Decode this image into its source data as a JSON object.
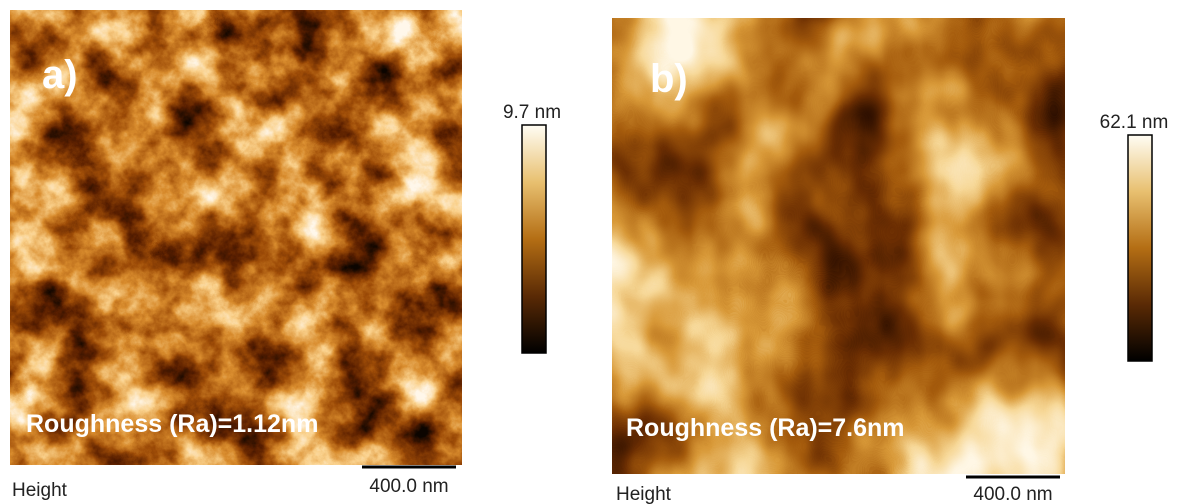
{
  "panels": [
    {
      "label": "a)",
      "colorbar_max": "9.7 nm",
      "roughness": "Roughness (Ra)=1.12nm",
      "channel": "Height",
      "scale_bar": "400.0 nm"
    },
    {
      "label": "b)",
      "colorbar_max": "62.1 nm",
      "roughness": "Roughness (Ra)=7.6nm",
      "channel": "Height",
      "scale_bar": "400.0 nm"
    }
  ]
}
